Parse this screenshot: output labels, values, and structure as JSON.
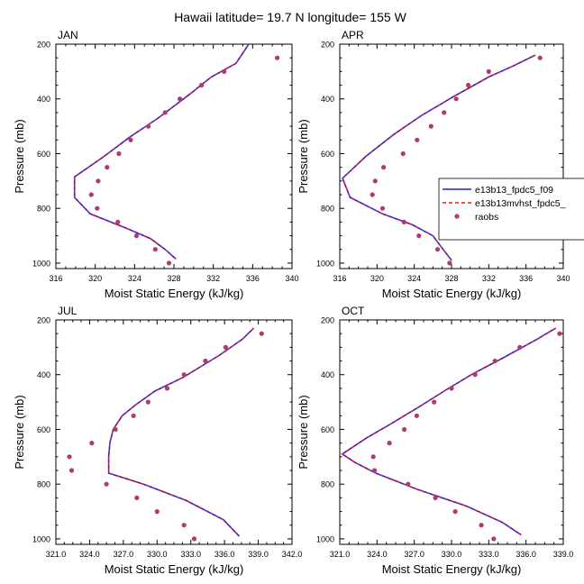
{
  "figure": {
    "title": "Hawaii  latitude= 19.7 N longitude= 155 W",
    "ylabel": "Pressure (mb)",
    "xlabel": "Moist Static Energy (kJ/kg)"
  },
  "legend": {
    "placement": "right, between top-right and bottom-right panels",
    "entries": [
      {
        "name": "e13b13_fpdc5_f09",
        "color": "#1f1fe0",
        "style": "solid line"
      },
      {
        "name": "e13b13mvhst_fpdc5_",
        "color": "#e02020",
        "style": "dashed line"
      },
      {
        "name": "raobs",
        "color": "#b03a6a",
        "style": "dot"
      }
    ]
  },
  "chart_data": [
    {
      "type": "line",
      "panel": "JAN",
      "title": "JAN",
      "xlabel": "Moist Static Energy (kJ/kg)",
      "ylabel": "Pressure (mb)",
      "xlim": [
        316,
        340
      ],
      "ylim": [
        1020,
        200
      ],
      "y_reversed": true,
      "xticks": [
        "316",
        "320",
        "324",
        "328",
        "332",
        "336",
        "340"
      ],
      "xtick_values": [
        316,
        320,
        324,
        328,
        332,
        336,
        340
      ],
      "yticks": [
        "200",
        "400",
        "600",
        "800",
        "1000"
      ],
      "ytick_values": [
        200,
        400,
        600,
        800,
        1000
      ],
      "series": [
        {
          "name": "e13b13_fpdc5_f09",
          "kind": "line",
          "color": "#1f1fe0",
          "points": [
            [
              335.6,
              200
            ],
            [
              334.3,
              270
            ],
            [
              331.8,
              320
            ],
            [
              329.7,
              380
            ],
            [
              326.4,
              470
            ],
            [
              323.5,
              540
            ],
            [
              320.9,
              610
            ],
            [
              317.9,
              685
            ],
            [
              317.9,
              760
            ],
            [
              319.5,
              820
            ],
            [
              323,
              870
            ],
            [
              325.6,
              910
            ],
            [
              327.1,
              950
            ],
            [
              328.2,
              985
            ]
          ]
        },
        {
          "name": "e13b13mvhst_fpdc5_",
          "kind": "line",
          "color": "#e02020",
          "points": [
            [
              335.6,
              200
            ],
            [
              334.3,
              270
            ],
            [
              331.8,
              320
            ],
            [
              329.7,
              380
            ],
            [
              326.4,
              470
            ],
            [
              323.5,
              540
            ],
            [
              320.9,
              610
            ],
            [
              317.9,
              685
            ],
            [
              317.9,
              760
            ],
            [
              319.5,
              820
            ],
            [
              323,
              870
            ],
            [
              325.6,
              910
            ],
            [
              327.1,
              950
            ],
            [
              328.2,
              985
            ]
          ]
        },
        {
          "name": "raobs",
          "kind": "points",
          "color": "#b03a6a",
          "points": [
            [
              338.5,
              250
            ],
            [
              333.1,
              300
            ],
            [
              330.8,
              350
            ],
            [
              328.6,
              400
            ],
            [
              327.1,
              450
            ],
            [
              325.4,
              500
            ],
            [
              323.6,
              550
            ],
            [
              322.4,
              600
            ],
            [
              321.2,
              650
            ],
            [
              320.3,
              700
            ],
            [
              319.6,
              750
            ],
            [
              320.2,
              800
            ],
            [
              322.3,
              850
            ],
            [
              324.2,
              900
            ],
            [
              326.1,
              950
            ],
            [
              327.5,
              1000
            ]
          ]
        }
      ]
    },
    {
      "type": "line",
      "panel": "APR",
      "title": "APR",
      "xlabel": "Moist Static Energy (kJ/kg)",
      "ylabel": "Pressure (mb)",
      "xlim": [
        316,
        340
      ],
      "ylim": [
        1020,
        200
      ],
      "y_reversed": true,
      "xticks": [
        "316",
        "320",
        "324",
        "328",
        "332",
        "336",
        "340"
      ],
      "xtick_values": [
        316,
        320,
        324,
        328,
        332,
        336,
        340
      ],
      "yticks": [
        "200",
        "400",
        "600",
        "800",
        "1000"
      ],
      "ytick_values": [
        200,
        400,
        600,
        800,
        1000
      ],
      "series": [
        {
          "name": "e13b13_fpdc5_f09",
          "kind": "line",
          "color": "#1f1fe0",
          "points": [
            [
              337,
              240
            ],
            [
              334.6,
              280
            ],
            [
              332,
              320
            ],
            [
              328.3,
              390
            ],
            [
              324.8,
              460
            ],
            [
              321.8,
              530
            ],
            [
              318.8,
              610
            ],
            [
              316.3,
              690
            ],
            [
              317.1,
              760
            ],
            [
              320.6,
              820
            ],
            [
              323.8,
              860
            ],
            [
              326,
              900
            ],
            [
              327.1,
              950
            ],
            [
              328,
              990
            ]
          ]
        },
        {
          "name": "e13b13mvhst_fpdc5_",
          "kind": "line",
          "color": "#e02020",
          "points": [
            [
              337,
              240
            ],
            [
              334.6,
              280
            ],
            [
              332,
              320
            ],
            [
              328.3,
              390
            ],
            [
              324.8,
              460
            ],
            [
              321.8,
              530
            ],
            [
              318.8,
              610
            ],
            [
              316.3,
              690
            ],
            [
              317.1,
              760
            ],
            [
              320.6,
              820
            ],
            [
              323.8,
              860
            ],
            [
              326,
              900
            ],
            [
              327.1,
              950
            ],
            [
              328,
              990
            ]
          ]
        },
        {
          "name": "raobs",
          "kind": "points",
          "color": "#b03a6a",
          "points": [
            [
              337.5,
              250
            ],
            [
              332,
              300
            ],
            [
              329.8,
              350
            ],
            [
              328.5,
              400
            ],
            [
              327.2,
              450
            ],
            [
              325.8,
              500
            ],
            [
              324.3,
              550
            ],
            [
              322.8,
              600
            ],
            [
              320.7,
              650
            ],
            [
              319.8,
              700
            ],
            [
              319.5,
              750
            ],
            [
              320.6,
              800
            ],
            [
              322.9,
              850
            ],
            [
              324.5,
              900
            ],
            [
              326.5,
              950
            ],
            [
              327.8,
              1000
            ]
          ]
        }
      ]
    },
    {
      "type": "line",
      "panel": "JUL",
      "title": "JUL",
      "xlabel": "Moist Static Energy (kJ/kg)",
      "ylabel": "Pressure (mb)",
      "xlim": [
        321,
        342
      ],
      "ylim": [
        1020,
        200
      ],
      "y_reversed": true,
      "xticks": [
        "321.0",
        "324.0",
        "327.0",
        "330.0",
        "333.0",
        "336.0",
        "339.0",
        "342.0"
      ],
      "xtick_values": [
        321,
        324,
        327,
        330,
        333,
        336,
        339,
        342
      ],
      "yticks": [
        "200",
        "400",
        "600",
        "800",
        "1000"
      ],
      "ytick_values": [
        200,
        400,
        600,
        800,
        1000
      ],
      "series": [
        {
          "name": "e13b13_fpdc5_f09",
          "kind": "line",
          "color": "#1f1fe0",
          "points": [
            [
              338.6,
              230
            ],
            [
              337.6,
              270
            ],
            [
              335.5,
              330
            ],
            [
              332.3,
              410
            ],
            [
              329.8,
              460
            ],
            [
              328.1,
              510
            ],
            [
              326.9,
              550
            ],
            [
              326.1,
              600
            ],
            [
              325.8,
              650
            ],
            [
              325.7,
              700
            ],
            [
              325.7,
              760
            ],
            [
              328.8,
              800
            ],
            [
              332.6,
              860
            ],
            [
              335.9,
              930
            ],
            [
              337.3,
              990
            ]
          ]
        },
        {
          "name": "e13b13mvhst_fpdc5_",
          "kind": "line",
          "color": "#e02020",
          "points": [
            [
              338.6,
              230
            ],
            [
              337.6,
              270
            ],
            [
              335.5,
              330
            ],
            [
              332.3,
              410
            ],
            [
              329.8,
              460
            ],
            [
              328.1,
              510
            ],
            [
              326.9,
              550
            ],
            [
              326.1,
              600
            ],
            [
              325.8,
              650
            ],
            [
              325.7,
              700
            ],
            [
              325.7,
              760
            ],
            [
              328.8,
              800
            ],
            [
              332.6,
              860
            ],
            [
              335.9,
              930
            ],
            [
              337.3,
              990
            ]
          ]
        },
        {
          "name": "raobs",
          "kind": "points",
          "color": "#b03a6a",
          "points": [
            [
              339.3,
              250
            ],
            [
              336.1,
              300
            ],
            [
              334.3,
              350
            ],
            [
              332.4,
              400
            ],
            [
              330.9,
              450
            ],
            [
              329.2,
              500
            ],
            [
              327.9,
              550
            ],
            [
              326.3,
              600
            ],
            [
              324.2,
              650
            ],
            [
              322.2,
              700
            ],
            [
              322.4,
              750
            ],
            [
              325.5,
              800
            ],
            [
              328.2,
              850
            ],
            [
              330,
              900
            ],
            [
              332.4,
              950
            ],
            [
              333.3,
              1000
            ]
          ]
        }
      ]
    },
    {
      "type": "line",
      "panel": "OCT",
      "title": "OCT",
      "xlabel": "Moist Static Energy (kJ/kg)",
      "ylabel": "Pressure (mb)",
      "xlim": [
        321,
        339
      ],
      "ylim": [
        1020,
        200
      ],
      "y_reversed": true,
      "xticks": [
        "321.0",
        "324.0",
        "327.0",
        "330.0",
        "333.0",
        "336.0",
        "339.0"
      ],
      "xtick_values": [
        321,
        324,
        327,
        330,
        333,
        336,
        339
      ],
      "yticks": [
        "200",
        "400",
        "600",
        "800",
        "1000"
      ],
      "ytick_values": [
        200,
        400,
        600,
        800,
        1000
      ],
      "series": [
        {
          "name": "e13b13_fpdc5_f09",
          "kind": "line",
          "color": "#1f1fe0",
          "points": [
            [
              338.4,
              230
            ],
            [
              336.9,
              270
            ],
            [
              334.1,
              340
            ],
            [
              331.6,
              400
            ],
            [
              329.4,
              460
            ],
            [
              327.3,
              520
            ],
            [
              325.1,
              580
            ],
            [
              323.2,
              630
            ],
            [
              321.2,
              690
            ],
            [
              322.2,
              720
            ],
            [
              323.9,
              760
            ],
            [
              327.3,
              820
            ],
            [
              331.2,
              880
            ],
            [
              334.1,
              940
            ],
            [
              335.6,
              985
            ]
          ]
        },
        {
          "name": "e13b13mvhst_fpdc5_",
          "kind": "line",
          "color": "#e02020",
          "points": [
            [
              338.4,
              230
            ],
            [
              336.9,
              270
            ],
            [
              334.1,
              340
            ],
            [
              331.6,
              400
            ],
            [
              329.4,
              460
            ],
            [
              327.3,
              520
            ],
            [
              325.1,
              580
            ],
            [
              323.2,
              630
            ],
            [
              321.2,
              690
            ],
            [
              322.2,
              720
            ],
            [
              323.9,
              760
            ],
            [
              327.3,
              820
            ],
            [
              331.2,
              880
            ],
            [
              334.1,
              940
            ],
            [
              335.6,
              985
            ]
          ]
        },
        {
          "name": "raobs",
          "kind": "points",
          "color": "#b03a6a",
          "points": [
            [
              338.7,
              250
            ],
            [
              335.5,
              300
            ],
            [
              333.5,
              350
            ],
            [
              331.9,
              400
            ],
            [
              330,
              450
            ],
            [
              328.6,
              500
            ],
            [
              327.2,
              550
            ],
            [
              326.2,
              600
            ],
            [
              325,
              650
            ],
            [
              323.7,
              700
            ],
            [
              323.8,
              750
            ],
            [
              326.5,
              800
            ],
            [
              328.7,
              850
            ],
            [
              330.3,
              900
            ],
            [
              332.4,
              950
            ],
            [
              333.4,
              1000
            ]
          ]
        }
      ]
    }
  ]
}
